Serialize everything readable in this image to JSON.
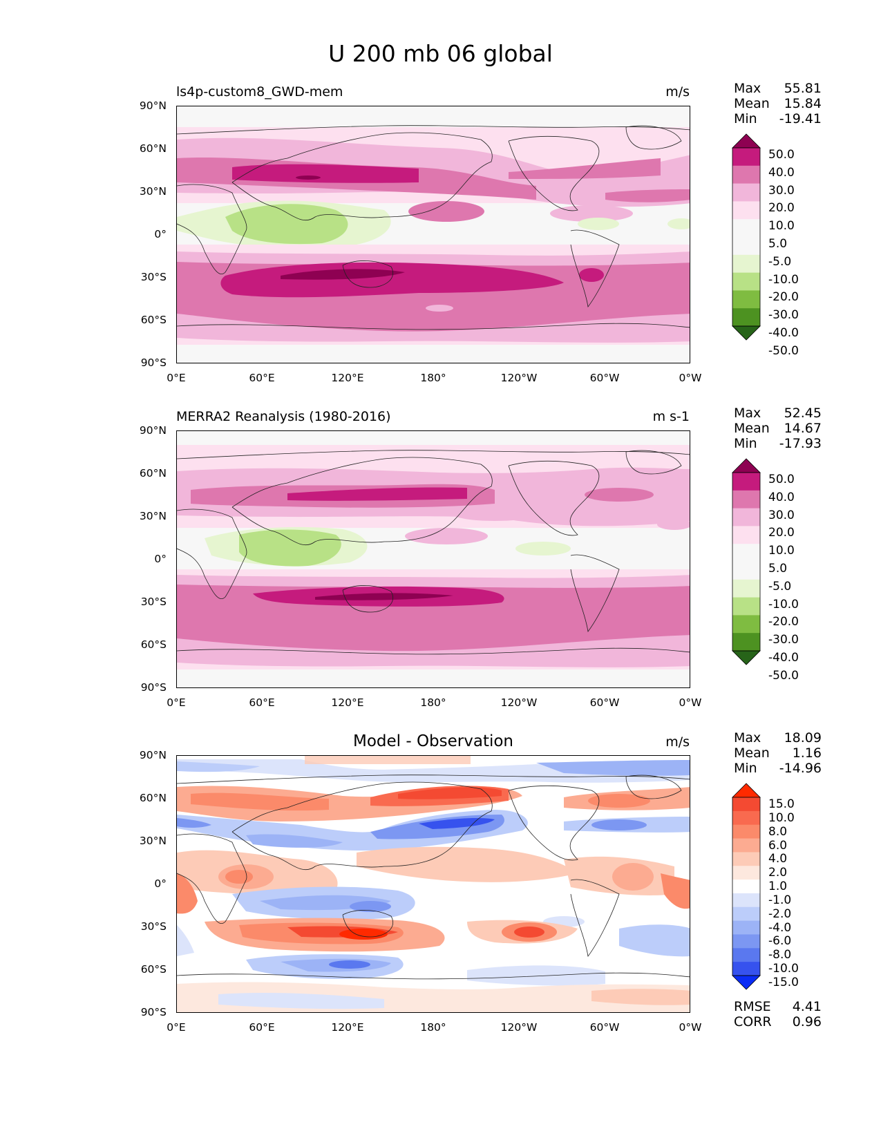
{
  "figure_title": "U 200 mb 06 global",
  "panels": [
    {
      "title": "ls4p-custom8_GWD-mem",
      "units": "m/s",
      "stats": [
        {
          "label": "Max",
          "value": "55.81"
        },
        {
          "label": "Mean",
          "value": "15.84"
        },
        {
          "label": "Min",
          "value": "-19.41"
        }
      ],
      "colorbar": {
        "labels": [
          "50.0",
          "40.0",
          "30.0",
          "20.0",
          "10.0",
          "5.0",
          "-5.0",
          "-10.0",
          "-20.0",
          "-30.0",
          "-40.0",
          "-50.0"
        ],
        "colors": [
          "#8e0152",
          "#c51b7d",
          "#de77ae",
          "#f1b6da",
          "#fde0ef",
          "#f7f7f7",
          "#f7f7f7",
          "#e6f5d0",
          "#b8e186",
          "#7fbc41",
          "#4d9221",
          "#276419"
        ]
      }
    },
    {
      "title": "MERRA2 Reanalysis (1980-2016)",
      "units": "m s-1",
      "stats": [
        {
          "label": "Max",
          "value": "52.45"
        },
        {
          "label": "Mean",
          "value": "14.67"
        },
        {
          "label": "Min",
          "value": "-17.93"
        }
      ],
      "colorbar": {
        "labels": [
          "50.0",
          "40.0",
          "30.0",
          "20.0",
          "10.0",
          "5.0",
          "-5.0",
          "-10.0",
          "-20.0",
          "-30.0",
          "-40.0",
          "-50.0"
        ],
        "colors": [
          "#8e0152",
          "#c51b7d",
          "#de77ae",
          "#f1b6da",
          "#fde0ef",
          "#f7f7f7",
          "#f7f7f7",
          "#e6f5d0",
          "#b8e186",
          "#7fbc41",
          "#4d9221",
          "#276419"
        ]
      }
    },
    {
      "title": "Model - Observation",
      "units": "m/s",
      "stats": [
        {
          "label": "Max",
          "value": "18.09"
        },
        {
          "label": "Mean",
          "value": "1.16"
        },
        {
          "label": "Min",
          "value": "-14.96"
        }
      ],
      "extra_stats": [
        {
          "label": "RMSE",
          "value": "4.41"
        },
        {
          "label": "CORR",
          "value": "0.96"
        }
      ],
      "colorbar": {
        "labels": [
          "15.0",
          "10.0",
          "8.0",
          "6.0",
          "4.0",
          "2.0",
          "1.0",
          "-1.0",
          "-2.0",
          "-4.0",
          "-6.0",
          "-8.0",
          "-10.0",
          "-15.0"
        ],
        "colors": [
          "#ff2a00",
          "#f44a32",
          "#f96a4f",
          "#fb8a6a",
          "#fcab91",
          "#fdcbb7",
          "#fde8de",
          "#ffffff",
          "#dce4fb",
          "#bccdfa",
          "#9cb3f6",
          "#7c97f2",
          "#5a78ef",
          "#3652ee",
          "#0a2cf5"
        ]
      }
    }
  ],
  "axes": {
    "y_ticks": [
      "90°N",
      "60°N",
      "30°N",
      "0°",
      "30°S",
      "60°S",
      "90°S"
    ],
    "x_ticks": [
      "0°E",
      "60°E",
      "120°E",
      "180°",
      "120°W",
      "60°W",
      "0°W"
    ]
  },
  "chart_data": [
    {
      "type": "heatmap",
      "title": "ls4p-custom8_GWD-mem",
      "variable": "U 200 mb",
      "units": "m/s",
      "xlim": [
        0,
        360
      ],
      "ylim": [
        -90,
        90
      ],
      "levels": [
        -50,
        -40,
        -30,
        -20,
        -10,
        -5,
        5,
        10,
        20,
        30,
        40,
        50
      ],
      "max": 55.81,
      "mean": 15.84,
      "min": -19.41
    },
    {
      "type": "heatmap",
      "title": "MERRA2 Reanalysis (1980-2016)",
      "variable": "U 200 mb",
      "units": "m s-1",
      "xlim": [
        0,
        360
      ],
      "ylim": [
        -90,
        90
      ],
      "levels": [
        -50,
        -40,
        -30,
        -20,
        -10,
        -5,
        5,
        10,
        20,
        30,
        40,
        50
      ],
      "max": 52.45,
      "mean": 14.67,
      "min": -17.93
    },
    {
      "type": "heatmap",
      "title": "Model - Observation",
      "variable": "U 200 mb difference",
      "units": "m/s",
      "xlim": [
        0,
        360
      ],
      "ylim": [
        -90,
        90
      ],
      "levels": [
        -15,
        -10,
        -8,
        -6,
        -4,
        -2,
        -1,
        1,
        2,
        4,
        6,
        8,
        10,
        15
      ],
      "max": 18.09,
      "mean": 1.16,
      "min": -14.96,
      "rmse": 4.41,
      "corr": 0.96
    }
  ]
}
